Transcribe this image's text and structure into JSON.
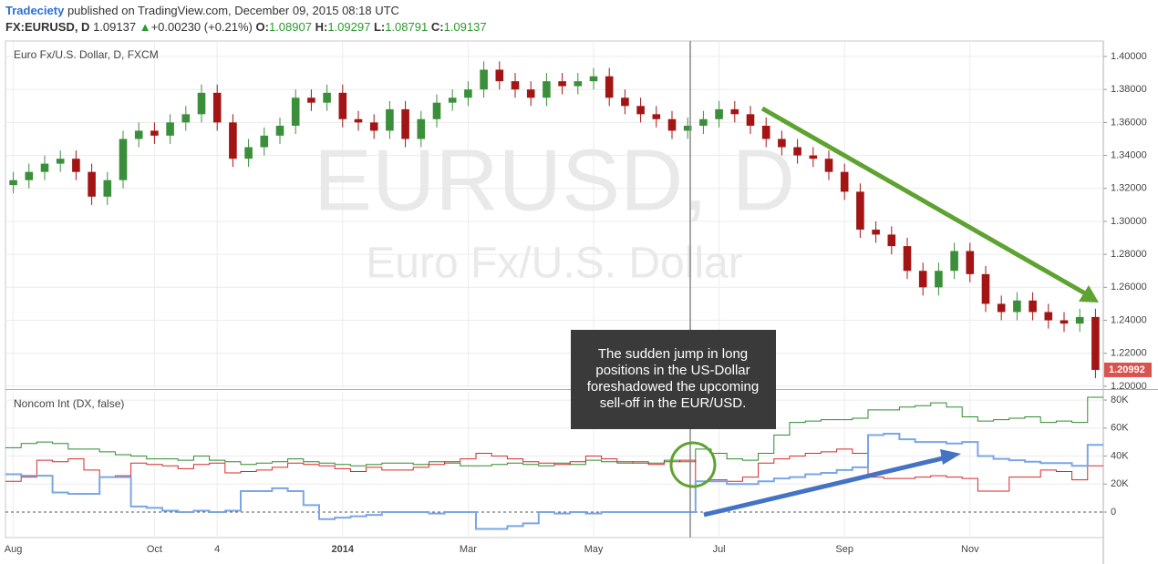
{
  "header": {
    "author": "Tradeciety",
    "published": "published on TradingView.com, December 09, 2015 08:18 UTC",
    "symbol": "FX:EURUSD, D",
    "price": "1.09137",
    "arrow": "▲",
    "change": "+0.00230 (+0.21%)",
    "o_label": "O:",
    "o": "1.08907",
    "h_label": "H:",
    "h": "1.09297",
    "l_label": "L:",
    "l": "1.08791",
    "c_label": "C:",
    "c": "1.09137"
  },
  "annotation": {
    "lines": [
      "The sudden jump in long",
      "positions in the US-Dollar",
      "foreshadowed the upcoming",
      "sell-off in the EUR/USD."
    ]
  },
  "chart_data": [
    {
      "type": "candlestick",
      "title": "Euro Fx/U.S. Dollar, D, FXCM",
      "watermark": "EURUSD, D",
      "watermark_subtitle": "Euro Fx/U.S. Dollar",
      "up_color": "#3b8f3b",
      "down_color": "#a31515",
      "grid": true,
      "categories": [
        "Aug",
        null,
        null,
        null,
        null,
        null,
        null,
        null,
        null,
        "Oct",
        null,
        null,
        null,
        "4",
        null,
        null,
        null,
        null,
        null,
        null,
        null,
        "2014",
        null,
        null,
        null,
        null,
        null,
        null,
        null,
        "Mar",
        null,
        null,
        null,
        null,
        null,
        null,
        null,
        "May",
        null,
        null,
        null,
        null,
        null,
        null,
        null,
        "Jul",
        null,
        null,
        null,
        null,
        null,
        null,
        null,
        "Sep",
        null,
        null,
        null,
        null,
        null,
        null,
        null,
        "Nov",
        null,
        null,
        null,
        null,
        null,
        null,
        null,
        null
      ],
      "open": [
        1.322,
        1.325,
        1.33,
        1.335,
        1.338,
        1.33,
        1.315,
        1.325,
        1.35,
        1.355,
        1.352,
        1.36,
        1.365,
        1.378,
        1.36,
        1.338,
        1.345,
        1.352,
        1.358,
        1.375,
        1.372,
        1.378,
        1.362,
        1.36,
        1.355,
        1.368,
        1.35,
        1.362,
        1.372,
        1.375,
        1.38,
        1.392,
        1.385,
        1.38,
        1.375,
        1.385,
        1.382,
        1.385,
        1.388,
        1.375,
        1.37,
        1.365,
        1.362,
        1.355,
        1.358,
        1.362,
        1.368,
        1.365,
        1.358,
        1.35,
        1.345,
        1.34,
        1.338,
        1.33,
        1.318,
        1.295,
        1.292,
        1.285,
        1.27,
        1.26,
        1.27,
        1.282,
        1.268,
        1.25,
        1.245,
        1.252,
        1.245,
        1.24,
        1.238,
        1.242
      ],
      "high": [
        1.33,
        1.335,
        1.34,
        1.343,
        1.343,
        1.335,
        1.33,
        1.355,
        1.36,
        1.36,
        1.365,
        1.37,
        1.383,
        1.383,
        1.365,
        1.35,
        1.357,
        1.363,
        1.38,
        1.38,
        1.383,
        1.383,
        1.367,
        1.365,
        1.373,
        1.373,
        1.367,
        1.377,
        1.38,
        1.385,
        1.397,
        1.397,
        1.39,
        1.385,
        1.39,
        1.39,
        1.39,
        1.393,
        1.393,
        1.38,
        1.375,
        1.37,
        1.367,
        1.363,
        1.367,
        1.373,
        1.373,
        1.37,
        1.363,
        1.355,
        1.35,
        1.345,
        1.343,
        1.335,
        1.323,
        1.3,
        1.297,
        1.29,
        1.275,
        1.275,
        1.287,
        1.287,
        1.273,
        1.255,
        1.257,
        1.257,
        1.25,
        1.245,
        1.247,
        1.247
      ],
      "low": [
        1.317,
        1.32,
        1.325,
        1.33,
        1.325,
        1.31,
        1.31,
        1.32,
        1.345,
        1.347,
        1.347,
        1.355,
        1.36,
        1.355,
        1.333,
        1.333,
        1.34,
        1.347,
        1.353,
        1.367,
        1.367,
        1.357,
        1.355,
        1.35,
        1.35,
        1.345,
        1.345,
        1.357,
        1.367,
        1.37,
        1.375,
        1.38,
        1.375,
        1.37,
        1.37,
        1.377,
        1.377,
        1.38,
        1.37,
        1.365,
        1.36,
        1.357,
        1.35,
        1.35,
        1.353,
        1.357,
        1.36,
        1.353,
        1.345,
        1.34,
        1.335,
        1.333,
        1.325,
        1.313,
        1.29,
        1.287,
        1.28,
        1.265,
        1.255,
        1.255,
        1.265,
        1.263,
        1.245,
        1.24,
        1.24,
        1.24,
        1.235,
        1.233,
        1.233,
        1.2049
      ],
      "close": [
        1.325,
        1.33,
        1.335,
        1.338,
        1.33,
        1.315,
        1.325,
        1.35,
        1.355,
        1.352,
        1.36,
        1.365,
        1.378,
        1.36,
        1.338,
        1.345,
        1.352,
        1.358,
        1.375,
        1.372,
        1.378,
        1.362,
        1.36,
        1.355,
        1.368,
        1.35,
        1.362,
        1.372,
        1.375,
        1.38,
        1.392,
        1.385,
        1.38,
        1.375,
        1.385,
        1.382,
        1.385,
        1.388,
        1.375,
        1.37,
        1.365,
        1.362,
        1.355,
        1.358,
        1.362,
        1.368,
        1.365,
        1.358,
        1.35,
        1.345,
        1.34,
        1.338,
        1.33,
        1.318,
        1.295,
        1.292,
        1.285,
        1.27,
        1.26,
        1.27,
        1.282,
        1.268,
        1.25,
        1.245,
        1.252,
        1.245,
        1.24,
        1.238,
        1.242,
        1.20992
      ],
      "last_color": "#d9534f",
      "ylim": [
        1.1994,
        1.4094
      ],
      "yticks": [
        {
          "value": 1.2,
          "label": "1.20000"
        },
        {
          "value": 1.22,
          "label": "1.22000"
        },
        {
          "value": 1.24,
          "label": "1.24000"
        },
        {
          "value": 1.26,
          "label": "1.26000"
        },
        {
          "value": 1.28,
          "label": "1.28000"
        },
        {
          "value": 1.3,
          "label": "1.30000"
        },
        {
          "value": 1.32,
          "label": "1.32000"
        },
        {
          "value": 1.34,
          "label": "1.34000"
        },
        {
          "value": 1.36,
          "label": "1.36000"
        },
        {
          "value": 1.38,
          "label": "1.38000"
        },
        {
          "value": 1.4,
          "label": "1.40000"
        }
      ]
    },
    {
      "type": "line",
      "step": true,
      "title": "Noncom Int (DX, false)",
      "grid": true,
      "series": [
        {
          "color": "#2e8b2e",
          "values": [
            46000,
            49000,
            50000,
            49000,
            45000,
            45000,
            43000,
            41000,
            40000,
            38000,
            38000,
            37000,
            40000,
            37000,
            36000,
            34000,
            35000,
            36000,
            38000,
            36000,
            35000,
            34000,
            33000,
            34000,
            35000,
            35000,
            34000,
            36000,
            35000,
            33000,
            33000,
            34000,
            35000,
            34000,
            33000,
            35000,
            34000,
            37000,
            36000,
            35000,
            36000,
            35000,
            37000,
            36000,
            45000,
            42000,
            38000,
            37000,
            42000,
            55000,
            64000,
            65000,
            66000,
            66000,
            67000,
            73000,
            73000,
            75000,
            76000,
            78000,
            75000,
            68000,
            65000,
            66000,
            67000,
            68000,
            64000,
            65000,
            64000,
            82000
          ]
        },
        {
          "color": "#d42a2a",
          "values": [
            22000,
            25000,
            37000,
            36000,
            38000,
            30000,
            25000,
            26000,
            35000,
            34000,
            33000,
            31000,
            34000,
            35000,
            28000,
            29000,
            30000,
            32000,
            35000,
            34000,
            33000,
            31000,
            29000,
            32000,
            30000,
            30000,
            32000,
            34000,
            36000,
            38000,
            42000,
            40000,
            38000,
            36000,
            35000,
            34000,
            36000,
            40000,
            38000,
            36000,
            35000,
            34000,
            36000,
            37000,
            22000,
            23000,
            22000,
            25000,
            35000,
            38000,
            40000,
            42000,
            43000,
            45000,
            42000,
            25000,
            24000,
            24000,
            25000,
            26000,
            25000,
            24000,
            15000,
            15000,
            25000,
            25000,
            30000,
            29000,
            23000,
            33000
          ]
        },
        {
          "color": "#7aa6e6",
          "values": [
            27000,
            26000,
            26000,
            14000,
            13000,
            13000,
            25000,
            25000,
            4000,
            3000,
            1000,
            0,
            1000,
            0,
            1000,
            15000,
            15000,
            17000,
            15000,
            5000,
            -5000,
            -4000,
            -3000,
            -2000,
            0,
            0,
            0,
            -1000,
            0,
            0,
            -12000,
            -12000,
            -10000,
            -8000,
            0,
            -1000,
            0,
            -1000,
            0,
            0,
            0,
            0,
            0,
            0,
            22000,
            22000,
            20000,
            20000,
            22000,
            24000,
            25000,
            27000,
            28000,
            30000,
            32000,
            55000,
            56000,
            52000,
            50000,
            50000,
            49000,
            50000,
            40000,
            38000,
            37000,
            36000,
            35000,
            35000,
            33000,
            48000
          ]
        }
      ],
      "ylim": [
        -18200,
        85900
      ],
      "yticks": [
        0,
        {
          "value": 20000,
          "label": "20K"
        },
        {
          "value": 40000,
          "label": "40K"
        },
        {
          "value": 60000,
          "label": "60K"
        },
        {
          "value": 80000,
          "label": "80K"
        }
      ]
    }
  ]
}
